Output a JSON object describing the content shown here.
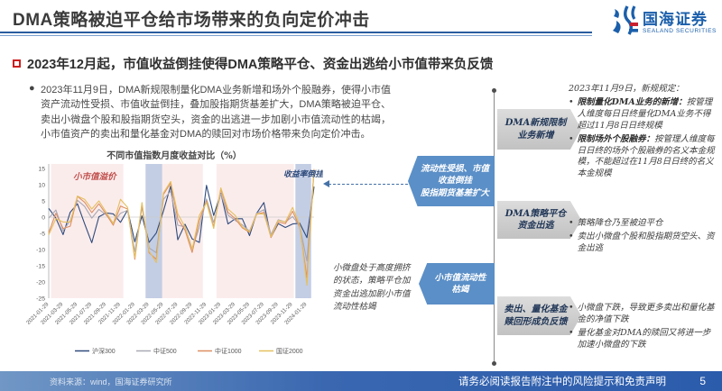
{
  "header": {
    "title": "DMA策略被迫平仓给市场带来的负向定价冲击",
    "logo_cn": "国海证券",
    "logo_en": "SEALAND SECURITIES"
  },
  "subtitle": "2023年12月起，市值收益倒挂使得DMA策略平仓、资金出逃给小市值带来负反馈",
  "body_bullet": "2023年11月9日，DMA新规限制量化DMA业务新增和场外个股融券，使得小市值资产流动性受损、市值收益倒挂，叠加股指期货基差扩大，DMA策略被迫平仓、卖出小微盘个股和股指期货空头，资金的出逃进一步加剧小市值流动性的枯竭，小市值资产的卖出和量化基金对DMA的赎回对市场价格带来负向定价冲击。",
  "chart_data": {
    "type": "line",
    "title": "不同市值指数月度收益对比（%）",
    "ylabel": "",
    "ylim": [
      -25,
      15
    ],
    "yticks": [
      15,
      10,
      5,
      0,
      -5,
      -10,
      -15,
      -20,
      -25
    ],
    "n_points": 38,
    "x_tick_labels": [
      "2021-01-29",
      "2021-03-29",
      "2021-05-29",
      "2021-07-29",
      "2021-09-29",
      "2021-11-29",
      "2022-01-29",
      "2022-03-29",
      "2022-05-29",
      "2022-07-29",
      "2022-09-29",
      "2022-11-29",
      "2023-01-29",
      "2023-03-29",
      "2023-05-29",
      "2023-07-29",
      "2023-09-29",
      "2023-11-29",
      "2024-01-29"
    ],
    "legend_position": "bottom",
    "grid": "zero-line-only",
    "series": [
      {
        "name": "沪深300",
        "color": "#2f4b7c",
        "values": [
          2.7,
          -0.3,
          -5.4,
          1.5,
          4.1,
          -2.0,
          -7.9,
          0.1,
          1.3,
          1.0,
          -1.6,
          2.2,
          -7.6,
          0.4,
          -7.8,
          -4.9,
          1.9,
          9.6,
          -7.0,
          -2.2,
          -6.7,
          -7.8,
          9.8,
          0.5,
          7.4,
          -2.1,
          -0.5,
          -0.5,
          -5.7,
          1.2,
          4.5,
          -6.2,
          -2.0,
          -3.2,
          -2.1,
          -1.9,
          -6.3,
          9.4
        ]
      },
      {
        "name": "中证500",
        "color": "#a8a8b4",
        "values": [
          -0.3,
          2.2,
          -4.2,
          -1.1,
          5.2,
          3.3,
          -0.3,
          2.4,
          0.7,
          -1.8,
          1.2,
          2.1,
          -10.6,
          3.0,
          -9.5,
          -11.0,
          5.5,
          8.0,
          -2.5,
          -3.0,
          -9.7,
          -3.2,
          5.6,
          -1.7,
          7.2,
          0.6,
          -1.0,
          -2.4,
          -4.3,
          1.2,
          2.3,
          -5.4,
          -0.8,
          -1.5,
          0.2,
          -2.8,
          -13.5,
          14.0
        ]
      },
      {
        "name": "中证1000",
        "color": "#dd8f62",
        "values": [
          -4.8,
          1.2,
          -3.5,
          -2.8,
          6.4,
          4.6,
          1.4,
          4.1,
          0.9,
          -2.5,
          3.4,
          2.5,
          -13.0,
          4.0,
          -11.0,
          -13.0,
          7.0,
          10.5,
          -0.5,
          -4.0,
          -10.9,
          -1.0,
          5.0,
          -3.0,
          8.6,
          1.5,
          -0.5,
          -3.3,
          -4.7,
          0.9,
          1.5,
          -6.3,
          -1.5,
          -2.0,
          1.8,
          -3.1,
          -18.7,
          14.8
        ]
      },
      {
        "name": "国证2000",
        "color": "#e5c05f",
        "values": [
          -5.5,
          -0.5,
          -1.5,
          -1.5,
          6.5,
          5.5,
          2.5,
          5.0,
          1.5,
          -2.0,
          5.5,
          3.0,
          -12.5,
          4.5,
          -10.5,
          -14.0,
          7.5,
          11.0,
          1.0,
          -3.0,
          -10.0,
          0.5,
          4.5,
          -3.5,
          9.0,
          2.5,
          0.5,
          -3.0,
          -4.5,
          1.0,
          1.0,
          -6.0,
          -1.0,
          -1.5,
          3.0,
          -2.5,
          -21.0,
          14.5
        ]
      }
    ],
    "annotations": [
      {
        "text": "小市值溢价",
        "color": "#c0504d",
        "position": "top-left"
      },
      {
        "text": "收益率倒挂",
        "color": "#2e4b7c",
        "position": "top-right"
      }
    ],
    "shaded_regions": {
      "pink_color": "#fbecec",
      "blue_color": "#c3cde4",
      "pink": [
        [
          0.3,
          10.4
        ],
        [
          15.8,
          21.5
        ],
        [
          23.4,
          34.2
        ]
      ],
      "blue": [
        [
          13.5,
          15.8
        ],
        [
          34.4,
          36.6
        ]
      ]
    }
  },
  "flow": {
    "gray_boxes": [
      {
        "lines": [
          "DMA新规限制",
          "业务新增"
        ]
      },
      {
        "lines": [
          "DMA策略平仓",
          "资金出逃"
        ]
      },
      {
        "lines": [
          "卖出、量化基金",
          "赎回形成负反馈"
        ]
      }
    ],
    "blue_boxes": [
      {
        "lines": [
          "流动性受损、市值",
          "收益倒挂",
          "股指期货基差扩大"
        ]
      },
      {
        "lines": [
          "小市值流动性",
          "枯竭"
        ]
      }
    ],
    "left_note": "小微盘处于高度拥挤的状态，策略平仓加资金出逃加剧小市值流动性枯竭"
  },
  "right_column": {
    "heading": "2023年11月9日，新规规定：",
    "rule_bullets": [
      {
        "lead": "限制量化DMA业务的新增：",
        "text": "按管理人维度每日日终量化DMA业务不得超过11月8日日终规模"
      },
      {
        "lead": "限制场外个股融券：",
        "text": "按管理人维度每日日终的场外个股融券的名义本金规模，不能超过在11月8日日终的名义本金规模"
      }
    ],
    "liquidation_bullets": [
      "策略降仓乃至被迫平仓",
      "卖出小微盘个股和股指期货空头、资金出逃"
    ],
    "feedback_bullets": [
      "小微盘下跌，导致更多卖出和量化基金的净值下跌",
      "量化基金对DMA的赎回又将进一步加速小微盘的下跌"
    ]
  },
  "footer": {
    "source": "资料来源：wind，国海证券研究所",
    "disclaimer": "请务必阅读报告附注中的风险提示和免责声明",
    "page": "5"
  }
}
